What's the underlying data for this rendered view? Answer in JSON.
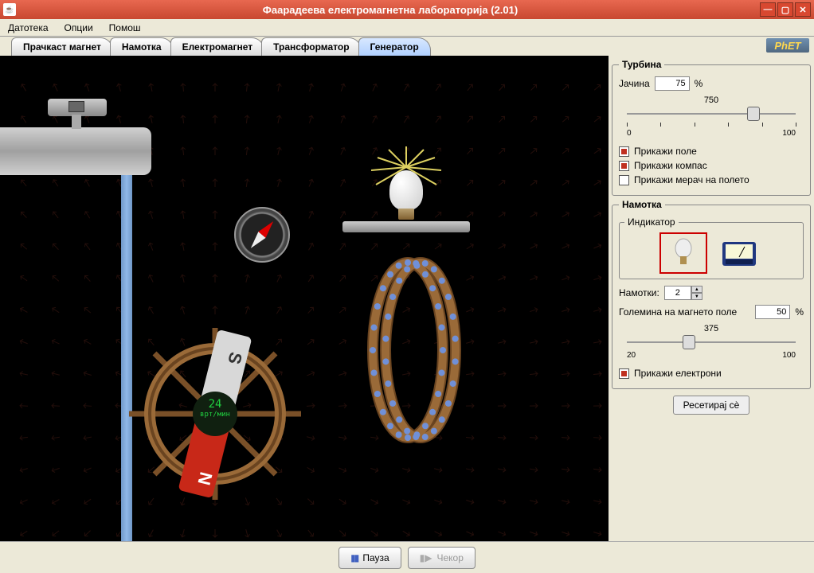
{
  "window": {
    "title": "Фаарадеева електромагнетна лабораторија (2.01)"
  },
  "menu": {
    "file": "Датотека",
    "options": "Опции",
    "help": "Помош"
  },
  "tabs": {
    "items": [
      {
        "label": "Прачкаст магнет"
      },
      {
        "label": "Намотка"
      },
      {
        "label": "Електромагнет"
      },
      {
        "label": "Трансформатор"
      },
      {
        "label": "Генератор"
      }
    ],
    "active_index": 4
  },
  "brand": "PhET",
  "turbine": {
    "legend": "Турбина",
    "strength_label": "Јачина",
    "strength_value": "75",
    "strength_suffix": "%",
    "slider_value_label": "750",
    "slider_min": "0",
    "slider_max": "100",
    "slider_pct": 75,
    "show_field": {
      "label": "Прикажи поле",
      "checked": true
    },
    "show_compass": {
      "label": "Прикажи компас",
      "checked": true
    },
    "show_meter": {
      "label": "Прикажи мерач на полето",
      "checked": false
    }
  },
  "coil": {
    "legend": "Намотка",
    "indicator_legend": "Индикатор",
    "indicator_selected": "bulb",
    "loops_label": "Намотки:",
    "loops_value": "2",
    "area_label": "Големина на магнето поле",
    "area_value": "50",
    "area_suffix": "%",
    "area_slider_label": "375",
    "area_min": "20",
    "area_max": "100",
    "area_pct": 37,
    "show_electrons": {
      "label": "Прикажи електрони",
      "checked": true
    }
  },
  "reset_label": "Ресетирај сè",
  "playback": {
    "pause": "Пауза",
    "step": "Чекор"
  },
  "sim": {
    "rpm_value": "24",
    "rpm_unit": "врт/мин",
    "magnet_s": "S",
    "magnet_n": "N"
  },
  "colors": {
    "accent": "#c84830",
    "water": "#7fa8d8",
    "coil": "#8a5a2a",
    "electron": "#7090d8"
  }
}
